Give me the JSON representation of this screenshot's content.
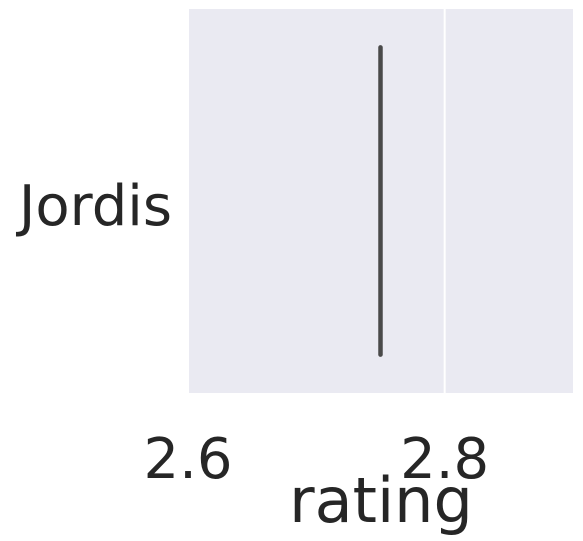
{
  "chart_data": {
    "type": "bar",
    "orientation": "horizontal",
    "categories": [
      "Jordis"
    ],
    "values": [
      2.75
    ],
    "error_bars": [
      {
        "low": 2.75,
        "high": 2.75
      }
    ],
    "xlabel": "rating",
    "ylabel": "",
    "xlim": [
      2.6,
      2.9
    ],
    "xticks": [
      2.6,
      2.8
    ],
    "xtick_labels": [
      "2.6",
      "2.8"
    ],
    "grid": true,
    "style": {
      "plot_background": "#EAEAF2",
      "grid_color": "#FFFFFF",
      "mark_color": "#4A4A4A",
      "text_color": "#262626"
    }
  }
}
